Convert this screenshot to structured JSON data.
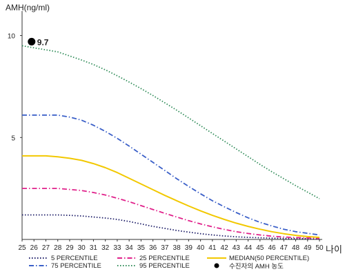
{
  "chart_data": {
    "type": "line",
    "ylabel": "AMH(ng/ml)",
    "xlabel": "나이",
    "xlim": [
      25,
      50
    ],
    "ylim": [
      0,
      11
    ],
    "x": [
      25,
      26,
      27,
      28,
      29,
      30,
      31,
      32,
      33,
      34,
      35,
      36,
      37,
      38,
      39,
      40,
      41,
      42,
      43,
      44,
      45,
      46,
      47,
      48,
      49,
      50
    ],
    "x_ticks": [
      "25",
      "26",
      "27",
      "28",
      "29",
      "30",
      "31",
      "32",
      "33",
      "34",
      "35",
      "36",
      "37",
      "38",
      "39",
      "40",
      "41",
      "42",
      "43",
      "44",
      "45",
      "46",
      "47",
      "48",
      "49",
      "50"
    ],
    "y_ticks": [
      "5",
      "10"
    ],
    "y_tick_values": [
      5,
      10
    ],
    "grid": false,
    "legend_position": "bottom",
    "series": [
      {
        "name": "5 PERCENTILE",
        "color": "#1a1a66",
        "style": "dotted",
        "values": [
          1.2,
          1.2,
          1.2,
          1.2,
          1.18,
          1.15,
          1.1,
          1.05,
          0.98,
          0.88,
          0.76,
          0.64,
          0.54,
          0.44,
          0.36,
          0.28,
          0.22,
          0.17,
          0.13,
          0.1,
          0.08,
          0.06,
          0.05,
          0.04,
          0.04,
          0.03
        ]
      },
      {
        "name": "25 PERCENTILE",
        "color": "#e0208a",
        "style": "dashdot",
        "values": [
          2.5,
          2.5,
          2.5,
          2.5,
          2.45,
          2.4,
          2.3,
          2.18,
          2.02,
          1.85,
          1.66,
          1.47,
          1.28,
          1.1,
          0.92,
          0.76,
          0.62,
          0.49,
          0.38,
          0.29,
          0.22,
          0.16,
          0.12,
          0.09,
          0.07,
          0.05
        ]
      },
      {
        "name": "MEDIAN(50 PERCENTILE)",
        "color": "#f2c800",
        "style": "solid",
        "values": [
          4.1,
          4.1,
          4.1,
          4.05,
          3.98,
          3.88,
          3.72,
          3.52,
          3.28,
          3.0,
          2.72,
          2.44,
          2.16,
          1.9,
          1.64,
          1.4,
          1.18,
          0.98,
          0.8,
          0.64,
          0.5,
          0.38,
          0.28,
          0.2,
          0.14,
          0.1
        ]
      },
      {
        "name": "75 PERCENTILE",
        "color": "#3a5fc8",
        "style": "dashdot",
        "values": [
          6.1,
          6.1,
          6.1,
          6.1,
          6.0,
          5.85,
          5.6,
          5.3,
          4.96,
          4.58,
          4.18,
          3.78,
          3.38,
          2.98,
          2.6,
          2.24,
          1.9,
          1.6,
          1.32,
          1.06,
          0.84,
          0.66,
          0.5,
          0.38,
          0.3,
          0.22
        ]
      },
      {
        "name": "95 PERCENTILE",
        "color": "#2e8b57",
        "style": "dotted",
        "values": [
          9.5,
          9.4,
          9.3,
          9.2,
          9.0,
          8.8,
          8.58,
          8.32,
          8.03,
          7.72,
          7.4,
          7.06,
          6.7,
          6.34,
          5.96,
          5.58,
          5.2,
          4.82,
          4.44,
          4.06,
          3.68,
          3.32,
          2.98,
          2.64,
          2.32,
          2.0
        ]
      }
    ],
    "annotation": {
      "name": "수진자의 AMH 농도",
      "x": 25.8,
      "y": 9.7,
      "label": "9.7"
    }
  }
}
